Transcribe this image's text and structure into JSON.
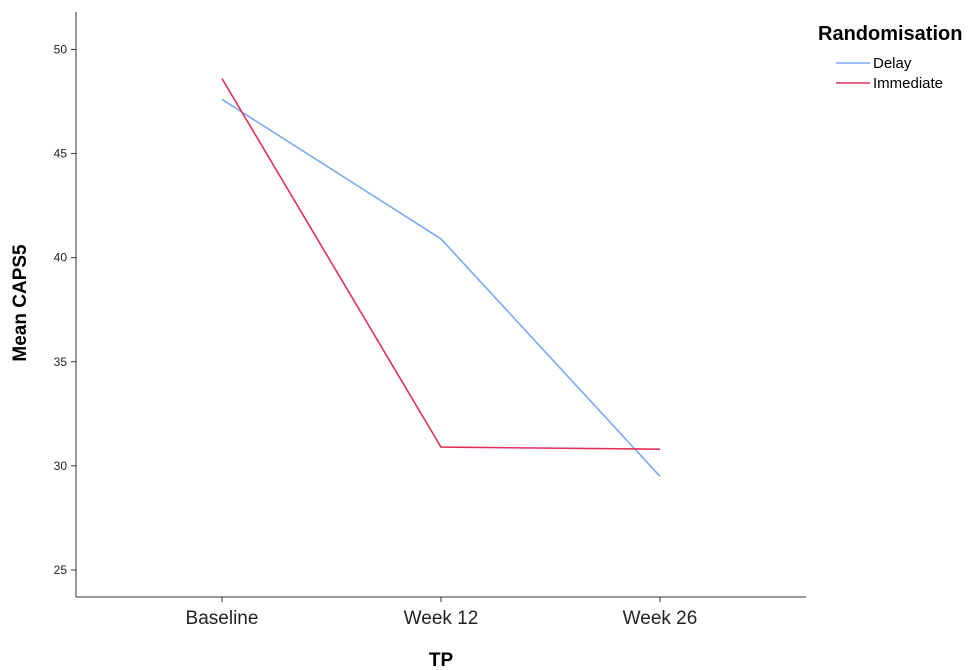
{
  "chart_data": {
    "type": "line",
    "categories": [
      "Baseline",
      "Week 12",
      "Week 26"
    ],
    "series": [
      {
        "name": "Delay",
        "values": [
          47.6,
          40.9,
          29.5
        ],
        "color": "#7aaaf0"
      },
      {
        "name": "Immediate",
        "values": [
          48.6,
          30.9,
          30.8
        ],
        "color": "#e0305a"
      }
    ],
    "xlabel": "TP",
    "ylabel": "Mean CAPS5",
    "ylim": [
      23.7,
      51.8
    ],
    "yticks": [
      25,
      30,
      35,
      40,
      45,
      50
    ],
    "grid": false,
    "legend": {
      "title": "Randomisation",
      "position": "top-right"
    }
  }
}
